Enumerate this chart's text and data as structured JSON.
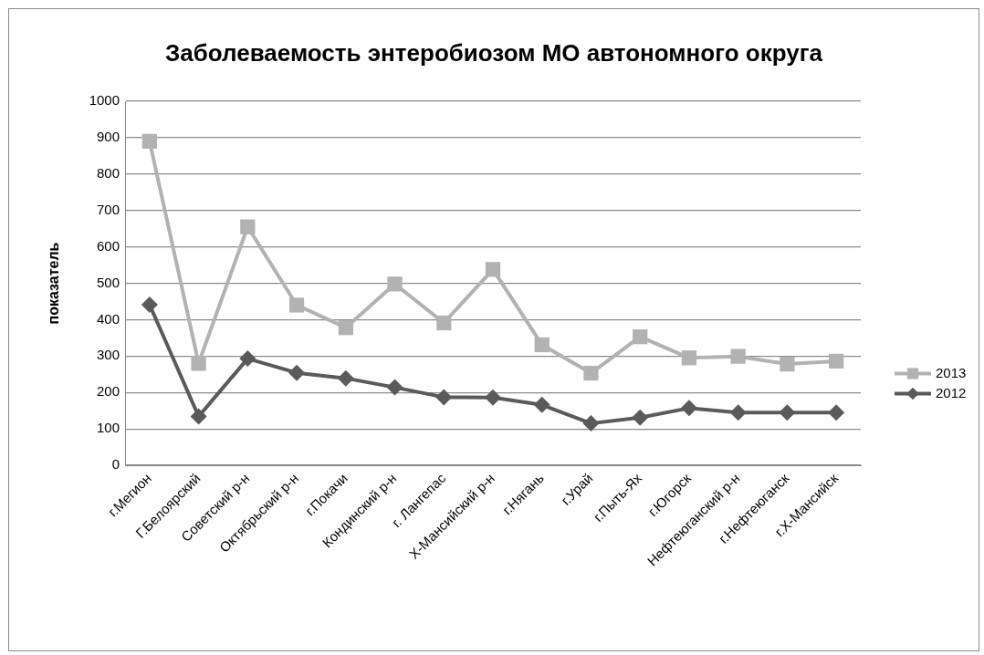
{
  "chart_data": {
    "type": "line",
    "title": "Заболеваемость энтеробиозом МО автономного округа",
    "ylabel": "показатель",
    "categories": [
      "г.Мегион",
      "Г.Белоярский",
      "Советский р-н",
      "Октябрьский р-н",
      "г.Покачи",
      "Кондинский р-н",
      "г. Лангепас",
      "Х-Мансийский р-н",
      "г.Нягань",
      "г.Урай",
      "г.Пыть-Ях",
      "г.Югорск",
      "Нефтеюганский р-н",
      "г.Нефтеюганск",
      "г.Х-Мансийск"
    ],
    "series": [
      {
        "name": "2013",
        "color": "#b2b2b2",
        "marker": "square",
        "values": [
          890,
          280,
          655,
          440,
          378,
          498,
          391,
          538,
          331,
          253,
          353,
          295,
          299,
          278,
          286
        ]
      },
      {
        "name": "2012",
        "color": "#5a5a5a",
        "marker": "diamond",
        "values": [
          441,
          134,
          293,
          254,
          239,
          214,
          187,
          186,
          166,
          115,
          131,
          157,
          145,
          145,
          145
        ]
      }
    ],
    "ylim": [
      0,
      1000
    ],
    "yticks": [
      0,
      100,
      200,
      300,
      400,
      500,
      600,
      700,
      800,
      900,
      1000
    ],
    "grid": "y",
    "legend": "right"
  }
}
